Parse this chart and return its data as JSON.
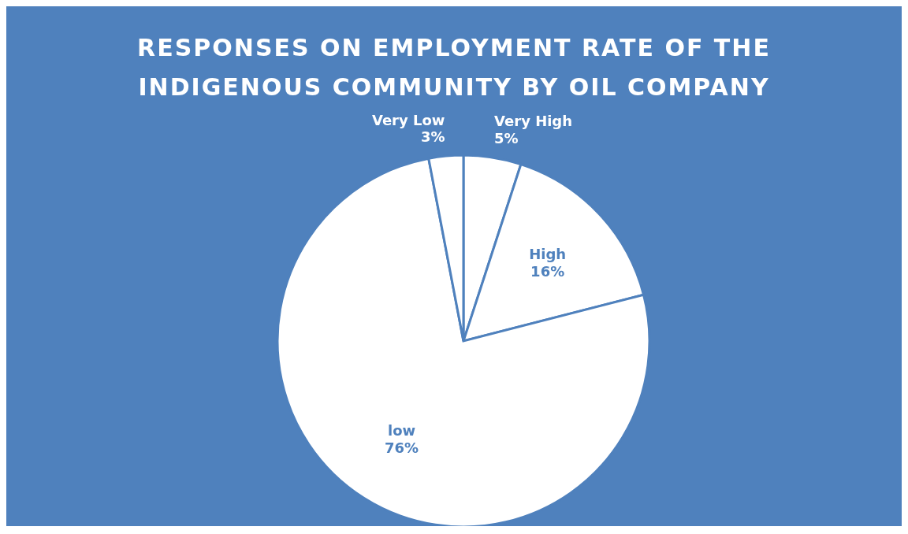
{
  "chart_data": {
    "type": "pie",
    "title": "RESPONSES ON EMPLOYMENT RATE OF THE INDIGENOUS COMMUNITY BY OIL COMPANY",
    "categories": [
      "Very High",
      "High",
      "low",
      "Very Low"
    ],
    "values": [
      5,
      16,
      76,
      3
    ],
    "colors": [
      "#ffffff",
      "#ffffff",
      "#ffffff",
      "#ffffff"
    ],
    "value_labels": [
      "5%",
      "16%",
      "76%",
      "3%"
    ]
  }
}
